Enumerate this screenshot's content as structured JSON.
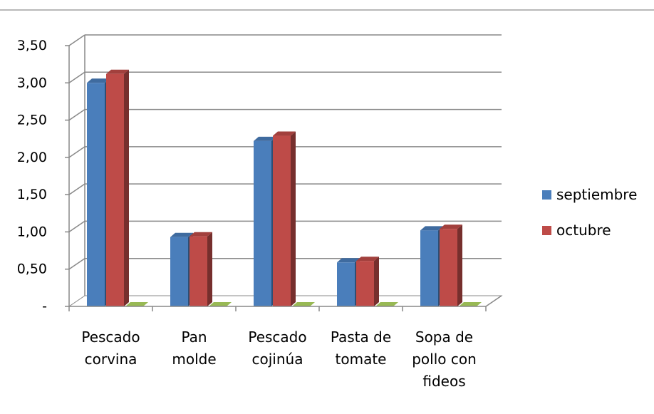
{
  "chart_data": {
    "type": "bar",
    "categories": [
      [
        "Pescado",
        "corvina"
      ],
      [
        "Pan",
        "molde"
      ],
      [
        "Pescado",
        "cojinúa"
      ],
      [
        "Pasta de",
        "tomate"
      ],
      [
        "Sopa de",
        "pollo con",
        "fideos"
      ]
    ],
    "series": [
      {
        "name": "septiembre",
        "color": "#4a7ebb",
        "values": [
          3.0,
          0.93,
          2.22,
          0.59,
          1.02
        ]
      },
      {
        "name": "octubre",
        "color": "#be4b48",
        "values": [
          3.12,
          0.94,
          2.29,
          0.61,
          1.04
        ]
      },
      {
        "color": "#98b954",
        "values": [
          0,
          0,
          0,
          0,
          0
        ]
      }
    ],
    "y_ticks": [
      "-",
      "0,50",
      "1,00",
      "1,50",
      "2,00",
      "2,50",
      "3,00",
      "3,50"
    ],
    "y_tick_values": [
      0,
      0.5,
      1.0,
      1.5,
      2.0,
      2.5,
      3.0,
      3.5
    ],
    "ylim": [
      0,
      3.5
    ],
    "grid": true,
    "legend_position": "right",
    "style": "3d-clustered-column"
  }
}
